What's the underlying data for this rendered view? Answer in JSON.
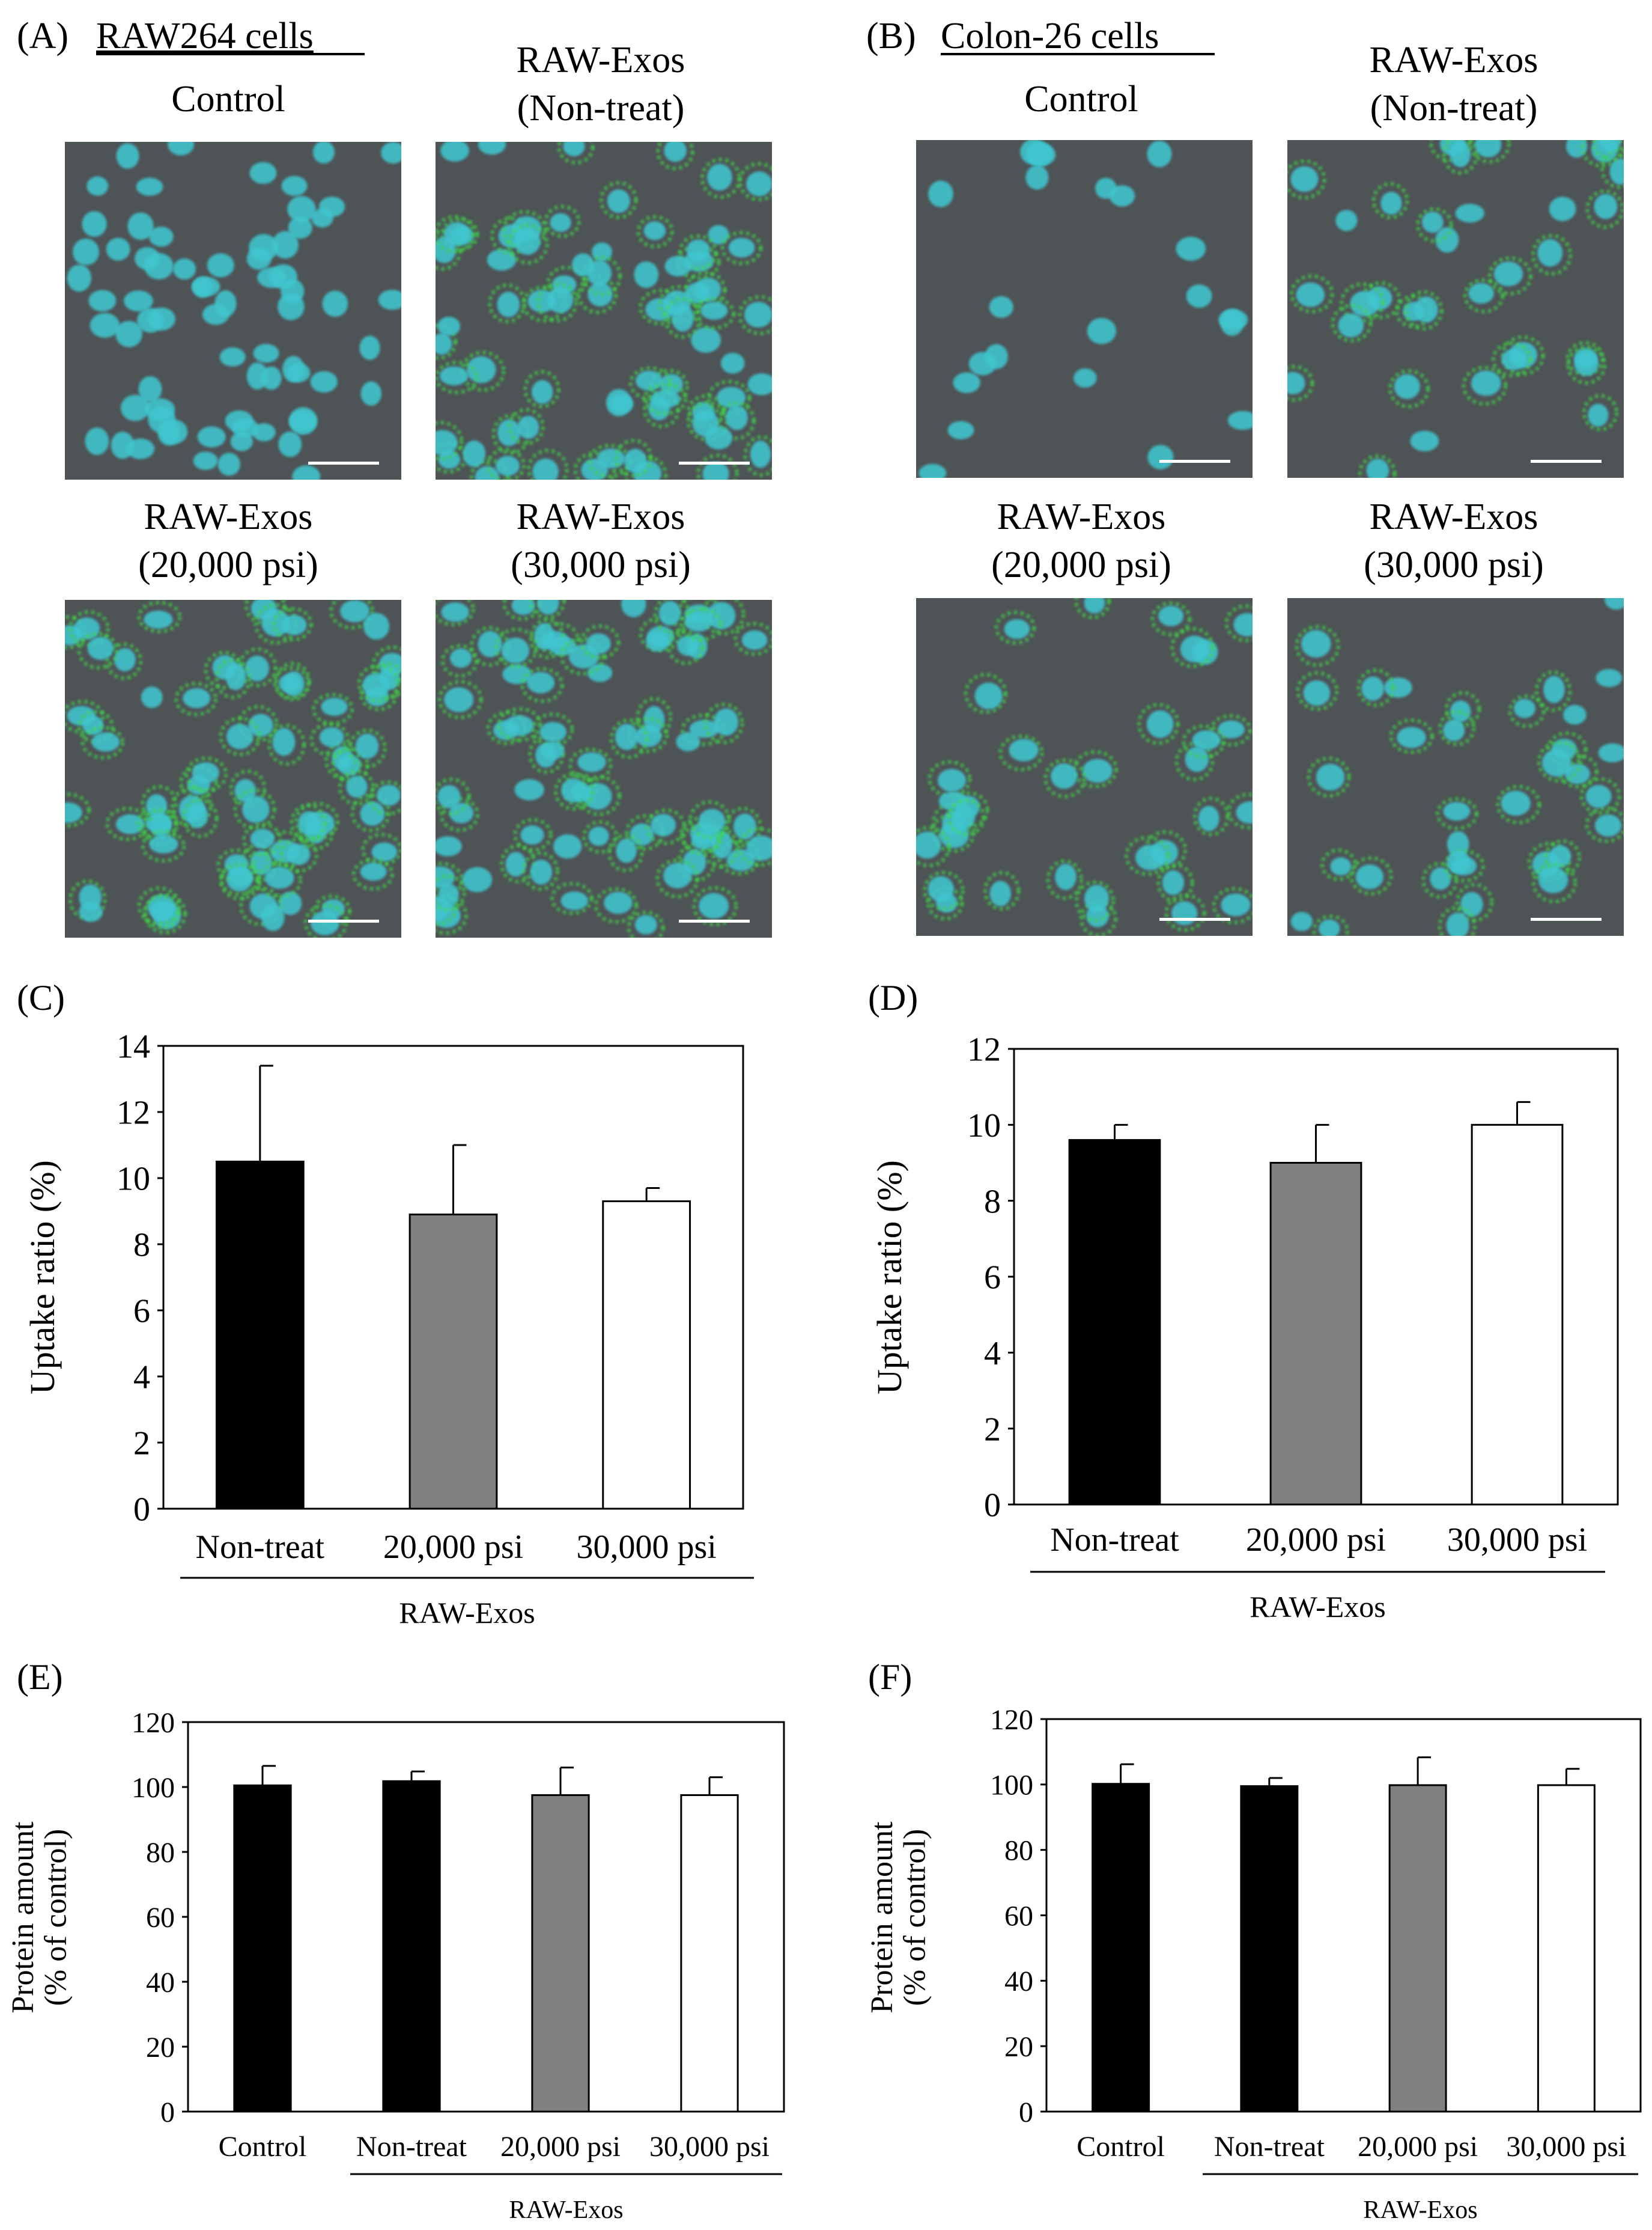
{
  "panels": {
    "A": {
      "letter": "(A)",
      "title": "RAW264 cells"
    },
    "B": {
      "letter": "(B)",
      "title": "Colon-26 cells"
    }
  },
  "micrographs": [
    {
      "panel": "A",
      "label": [
        "Control"
      ],
      "green": 0.0
    },
    {
      "panel": "A",
      "label": [
        "RAW-Exos",
        "(Non-treat)"
      ],
      "green": 0.7
    },
    {
      "panel": "A",
      "label": [
        "RAW-Exos",
        "(20,000 psi)"
      ],
      "green": 0.9
    },
    {
      "panel": "A",
      "label": [
        "RAW-Exos",
        "(30,000 psi)"
      ],
      "green": 0.85
    },
    {
      "panel": "B",
      "label": [
        "Control"
      ],
      "green": 0.0
    },
    {
      "panel": "B",
      "label": [
        "RAW-Exos",
        "(Non-treat)"
      ],
      "green": 0.8
    },
    {
      "panel": "B",
      "label": [
        "RAW-Exos",
        "(20,000 psi)"
      ],
      "green": 0.85
    },
    {
      "panel": "B",
      "label": [
        "RAW-Exos",
        "(30,000 psi)"
      ],
      "green": 0.85
    }
  ],
  "colors": {
    "micrograph_bg": "#4e5356",
    "nuclei": "#3fc6cf",
    "exosome": "#3fd84a",
    "scale_bar": "#ffffff",
    "bar_black": "#000000",
    "bar_gray": "#808080",
    "bar_white": "#ffffff"
  },
  "chart_data": [
    {
      "id": "C",
      "letter": "(C)",
      "type": "bar",
      "categories": [
        "Non-treat",
        "20,000  psi",
        "30,000  psi"
      ],
      "values": [
        10.5,
        8.9,
        9.3
      ],
      "errors": [
        2.9,
        2.1,
        0.4
      ],
      "fills": [
        "#000000",
        "#808080",
        "#ffffff"
      ],
      "ylabel": [
        "Uptake ratio (%)"
      ],
      "ylim": [
        0,
        14
      ],
      "yticks": [
        0,
        2,
        4,
        6,
        8,
        10,
        12,
        14
      ],
      "group_label": "RAW-Exos",
      "group_start": 0
    },
    {
      "id": "D",
      "letter": "(D)",
      "type": "bar",
      "categories": [
        "Non-treat",
        "20,000  psi",
        "30,000  psi"
      ],
      "values": [
        9.6,
        9.0,
        10.0
      ],
      "errors": [
        0.4,
        1.0,
        0.6
      ],
      "fills": [
        "#000000",
        "#808080",
        "#ffffff"
      ],
      "ylabel": [
        "Uptake ratio (%)"
      ],
      "ylim": [
        0,
        12
      ],
      "yticks": [
        0,
        2,
        4,
        6,
        8,
        10,
        12
      ],
      "group_label": "RAW-Exos",
      "group_start": 0
    },
    {
      "id": "E",
      "letter": "(E)",
      "type": "bar",
      "categories": [
        "Control",
        "Non-treat",
        "20,000 psi",
        "30,000 psi"
      ],
      "values": [
        100.5,
        101.8,
        97.5,
        97.5
      ],
      "errors": [
        6.0,
        3.0,
        8.5,
        5.5
      ],
      "fills": [
        "#000000",
        "#000000",
        "#808080",
        "#ffffff"
      ],
      "ylabel": [
        "Protein amount",
        "(% of control)"
      ],
      "ylim": [
        0,
        120
      ],
      "yticks": [
        0,
        20,
        40,
        60,
        80,
        100,
        120
      ],
      "group_label": "RAW-Exos",
      "group_start": 1
    },
    {
      "id": "F",
      "letter": "(F)",
      "type": "bar",
      "categories": [
        "Control",
        "Non-treat",
        "20,000 psi",
        "30,000 psi"
      ],
      "values": [
        100.2,
        99.5,
        99.8,
        99.8
      ],
      "errors": [
        6.0,
        2.5,
        8.5,
        5.0
      ],
      "fills": [
        "#000000",
        "#000000",
        "#808080",
        "#ffffff"
      ],
      "ylabel": [
        "Protein amount",
        "(% of control)"
      ],
      "ylim": [
        0,
        120
      ],
      "yticks": [
        0,
        20,
        40,
        60,
        80,
        100,
        120
      ],
      "group_label": "RAW-Exos",
      "group_start": 1
    }
  ]
}
